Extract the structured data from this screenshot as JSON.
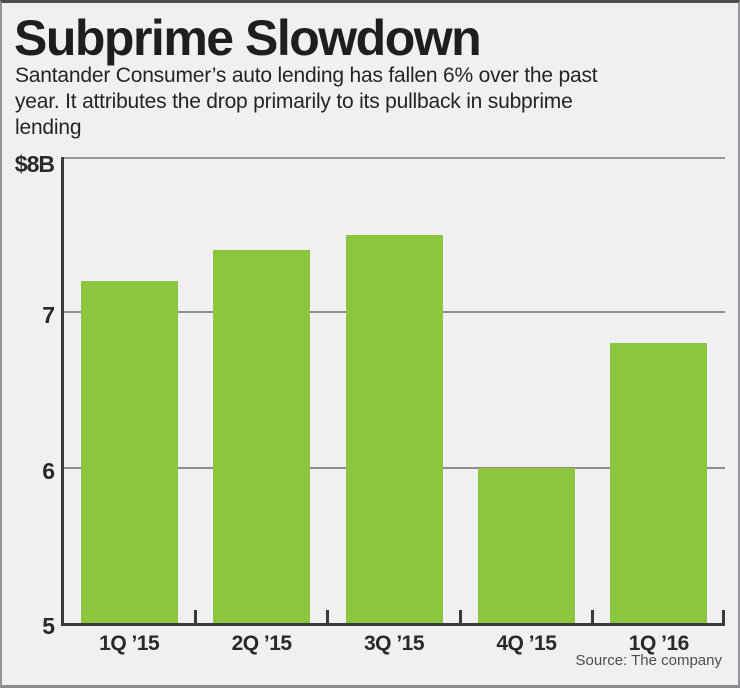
{
  "header": {
    "title": "Subprime Slowdown",
    "subtitle": "Santander Consumer’s auto lending has fallen 6% over the past\nyear. It attributes the drop primarily to its pullback in subprime\nlending"
  },
  "chart_data": {
    "type": "bar",
    "title": "Subprime Slowdown",
    "subtitle": "Santander Consumer’s auto lending has fallen 6% over the past year. It attributes the drop primarily to its pullback in subprime lending",
    "categories": [
      "1Q ’15",
      "2Q ’15",
      "3Q ’15",
      "4Q ’15",
      "1Q ’16"
    ],
    "values": [
      7.2,
      7.4,
      7.5,
      6.0,
      6.8
    ],
    "unit": "billions of dollars",
    "xlabel": "",
    "ylabel": "",
    "ylim": [
      5,
      8
    ],
    "yticks": [
      5,
      6,
      7,
      8
    ],
    "ytick_labels": [
      "5",
      "6",
      "7",
      "$8B"
    ],
    "gridlines_at": [
      6,
      7
    ],
    "grid": true,
    "legend": "none",
    "bar_color": "#8cc63f",
    "background_color": "#f0f0f2",
    "axis_color": "#3a3a3c"
  },
  "footer": {
    "source_label": "Source: The company"
  }
}
